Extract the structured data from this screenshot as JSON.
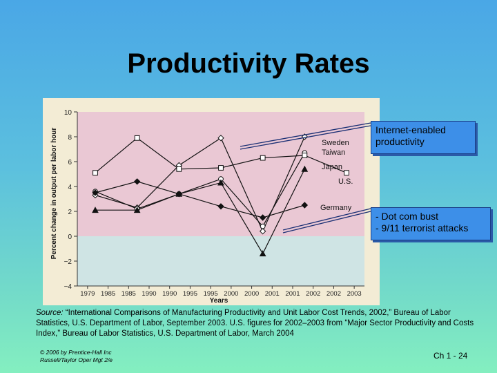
{
  "slide": {
    "title": "Productivity  Rates",
    "callouts": [
      {
        "lines": [
          "Internet-enabled",
          "productivity"
        ]
      },
      {
        "lines": [
          "- Dot com bust",
          "- 9/11 terrorist attacks"
        ]
      }
    ],
    "source": {
      "label": "Source:",
      "text": " “International Comparisons of Manufacturing Productivity and Unit Labor Cost Trends, 2002,” Bureau of Labor Statistics, U.S. Department of Labor, September 2003. U.S. figures for 2002–2003 from “Major Sector Productivity and Costs Index,” Bureau of Labor Statistics, U.S. Department of Labor, March 2004"
    },
    "footer": {
      "line1": "© 2006 by Prentice-Hall Inc",
      "line2": "Russell/Taylor Oper Mgt 2/e",
      "page": "Ch 1 - 24"
    },
    "colors": {
      "band_positive": "#eac8d4",
      "band_negative": "#cfe4e4",
      "chart_background": "#f3ecd5",
      "callout": "#3d8fe8"
    }
  },
  "chart_data": {
    "type": "line",
    "title": "",
    "xlabel": "Years",
    "ylabel": "Percent change in output per labor hour",
    "categories": [
      "1979–1985",
      "1985–1990",
      "1990–1995",
      "1995–2000",
      "2000–2001",
      "2001–2002",
      "2002–2003"
    ],
    "tick_labels": [
      "1979",
      "1985",
      "1985",
      "1990",
      "1990",
      "1995",
      "1995",
      "2000",
      "2000",
      "2001",
      "2001",
      "2002",
      "2002",
      "2003"
    ],
    "ylim": [
      -4,
      10
    ],
    "yticks": [
      -4,
      -2,
      0,
      2,
      4,
      6,
      8,
      10
    ],
    "series": [
      {
        "name": "Sweden",
        "marker": "open-diamond",
        "values": [
          3.3,
          2.3,
          5.7,
          7.9,
          0.4,
          8.0,
          null
        ]
      },
      {
        "name": "Taiwan",
        "marker": "open-circle",
        "values": [
          3.6,
          2.2,
          3.4,
          4.6,
          0.8,
          6.7,
          null
        ]
      },
      {
        "name": "Japan",
        "marker": "filled-triangle",
        "values": [
          2.1,
          2.1,
          3.4,
          4.3,
          -1.4,
          5.4,
          null
        ]
      },
      {
        "name": "U.S.",
        "marker": "open-square",
        "values": [
          5.1,
          7.9,
          5.4,
          5.5,
          6.3,
          6.5,
          5.1
        ]
      },
      {
        "name": "Germany",
        "marker": "filled-diamond",
        "values": [
          3.5,
          4.4,
          3.4,
          2.4,
          1.5,
          2.5,
          null
        ]
      }
    ]
  }
}
